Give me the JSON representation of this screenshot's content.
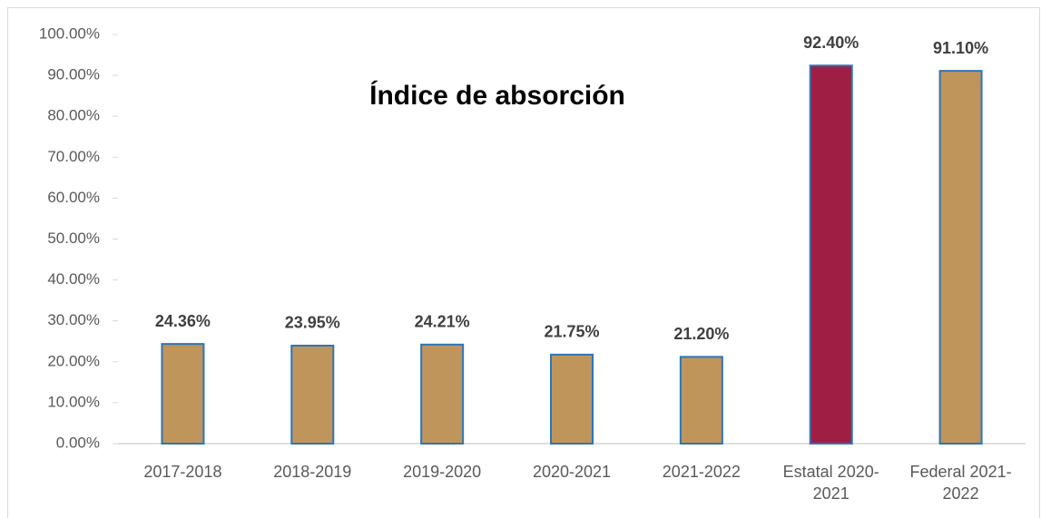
{
  "chart_data": {
    "type": "bar",
    "title": "Índice de absorción",
    "categories": [
      "2017-2018",
      "2018-2019",
      "2019-2020",
      "2020-2021",
      "2021-2022",
      "Estatal 2020-2021",
      "Federal 2021-2022"
    ],
    "values": [
      24.36,
      23.95,
      24.21,
      21.75,
      21.2,
      92.4,
      91.1
    ],
    "value_labels": [
      "24.36%",
      "23.95%",
      "24.21%",
      "21.75%",
      "21.20%",
      "92.40%",
      "91.10%"
    ],
    "colors": [
      "#bf955b",
      "#bf955b",
      "#bf955b",
      "#bf955b",
      "#bf955b",
      "#9e1f43",
      "#bf955b"
    ],
    "edge_color": "#2e75b6",
    "ylim": [
      0,
      100
    ],
    "yticks": [
      {
        "value": 0,
        "label": "0.00%"
      },
      {
        "value": 10,
        "label": "10.00%"
      },
      {
        "value": 20,
        "label": "20.00%"
      },
      {
        "value": 30,
        "label": "30.00%"
      },
      {
        "value": 40,
        "label": "40.00%"
      },
      {
        "value": 50,
        "label": "50.00%"
      },
      {
        "value": 60,
        "label": "60.00%"
      },
      {
        "value": 70,
        "label": "70.00%"
      },
      {
        "value": 80,
        "label": "80.00%"
      },
      {
        "value": 90,
        "label": "90.00%"
      },
      {
        "value": 100,
        "label": "100.00%"
      }
    ],
    "grid": false
  }
}
